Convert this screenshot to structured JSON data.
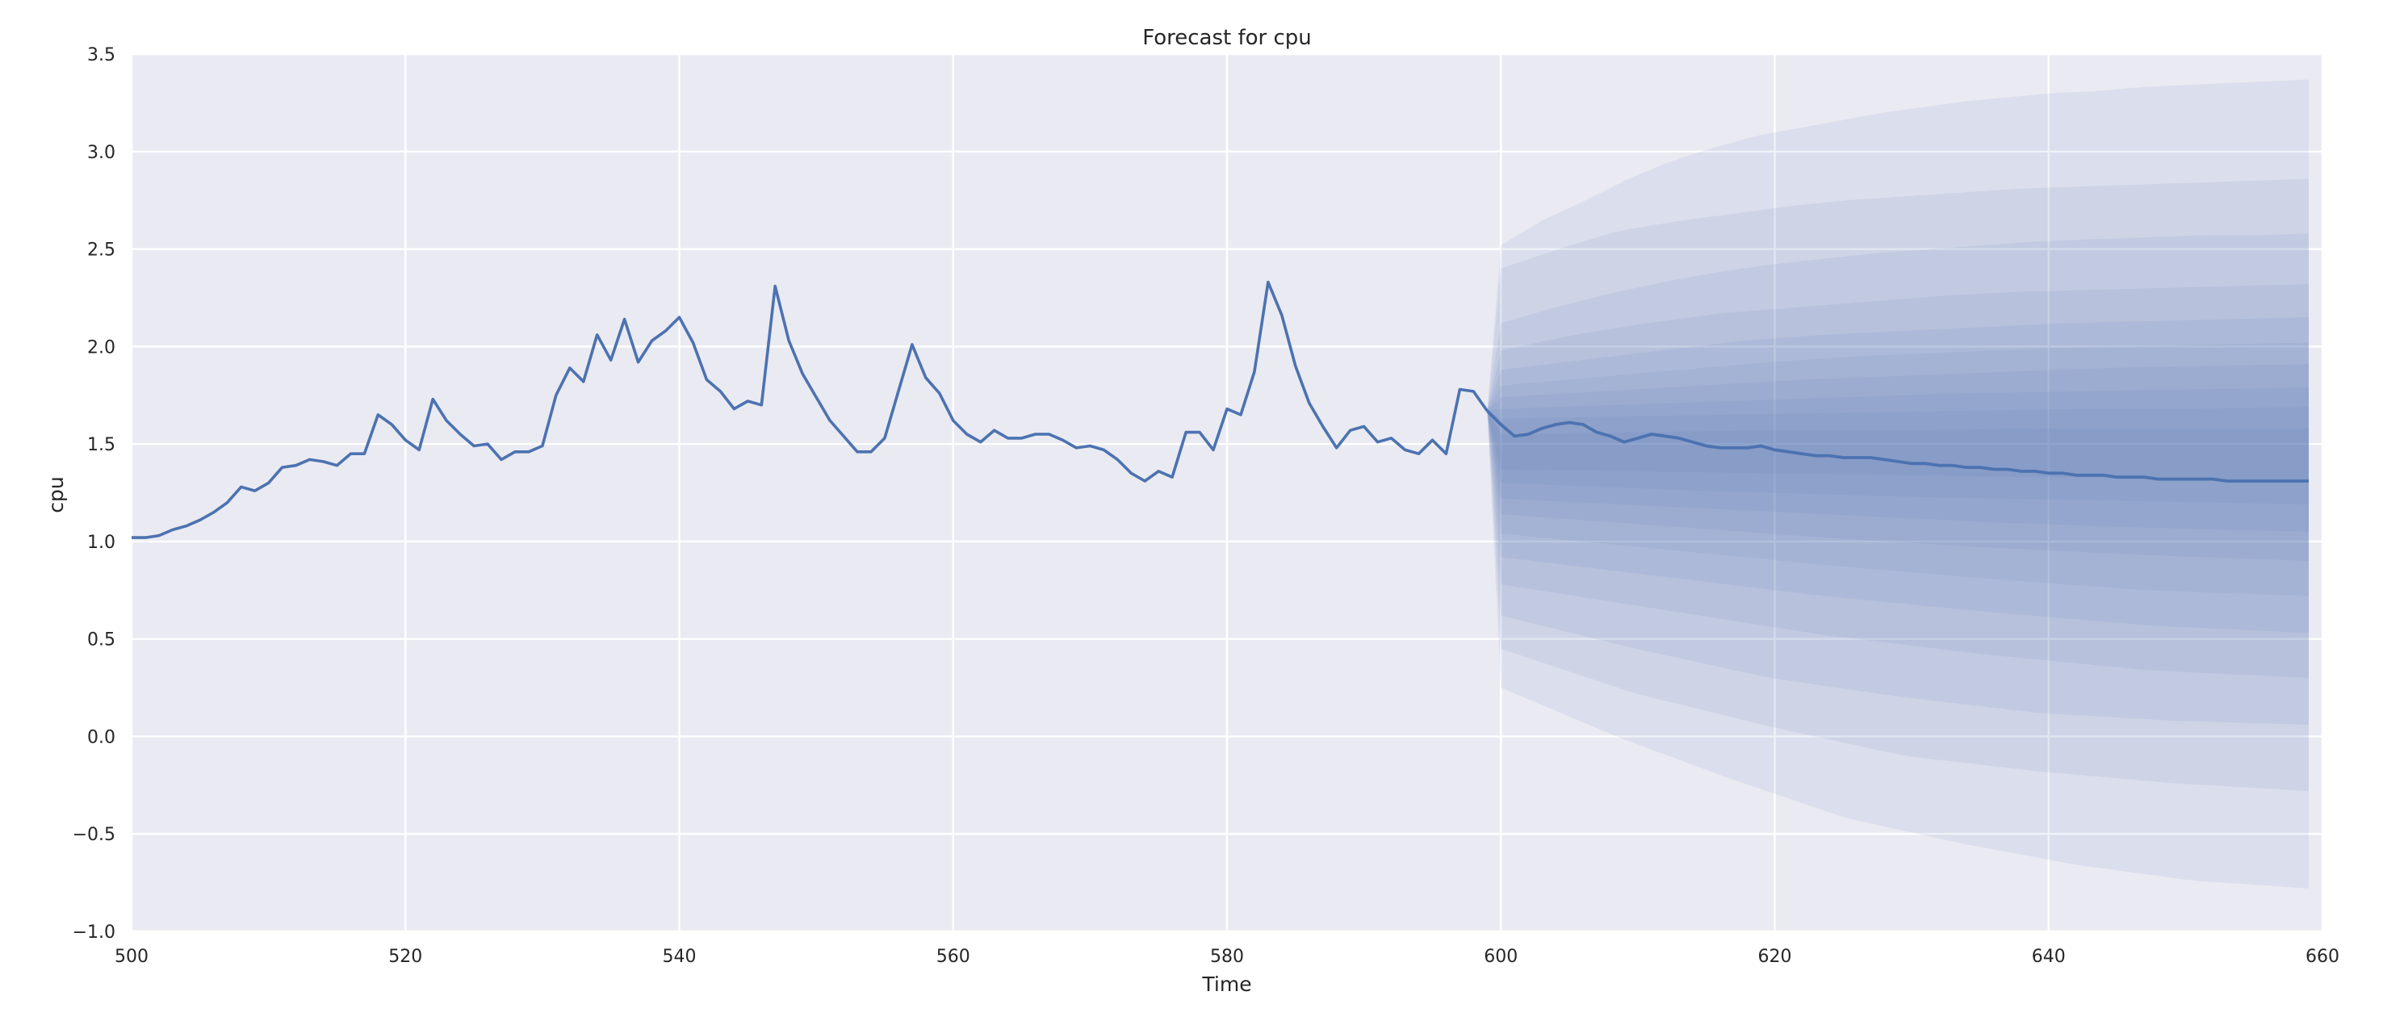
{
  "chart_data": {
    "type": "line",
    "title": "Forecast for cpu",
    "xlabel": "Time",
    "ylabel": "cpu",
    "xlim": [
      500,
      660
    ],
    "ylim": [
      -1.0,
      3.5
    ],
    "grid": true,
    "xticks": [
      "500",
      "520",
      "540",
      "560",
      "580",
      "600",
      "620",
      "640",
      "660"
    ],
    "yticks": [
      "−1.0",
      "−0.5",
      "0.0",
      "0.5",
      "1.0",
      "1.5",
      "2.0",
      "2.5",
      "3.0",
      "3.5"
    ],
    "colors": {
      "background": "#eaeaf2",
      "grid": "#ffffff",
      "line": "#4c72b0",
      "band": "#4c72b0"
    },
    "series": [
      {
        "x_start": 500,
        "values": [
          1.02,
          1.02,
          1.03,
          1.06,
          1.08,
          1.11,
          1.15,
          1.2,
          1.28,
          1.26,
          1.3,
          1.38,
          1.39,
          1.42,
          1.41,
          1.39,
          1.45,
          1.45,
          1.65,
          1.6,
          1.52,
          1.47,
          1.73,
          1.62,
          1.55,
          1.49,
          1.5,
          1.42,
          1.46,
          1.46,
          1.49,
          1.75,
          1.89,
          1.82,
          2.06,
          1.93,
          2.14,
          1.92,
          2.03,
          2.08,
          2.15,
          2.02,
          1.83,
          1.77,
          1.68,
          1.72,
          1.7,
          2.31,
          2.03,
          1.86,
          1.74,
          1.62,
          1.54,
          1.46,
          1.46,
          1.53,
          1.77,
          2.01,
          1.84,
          1.76,
          1.62,
          1.55,
          1.51,
          1.57,
          1.53,
          1.53,
          1.55,
          1.55,
          1.52,
          1.48,
          1.49,
          1.47,
          1.42,
          1.35,
          1.31,
          1.36,
          1.33,
          1.56,
          1.56,
          1.47,
          1.68,
          1.65,
          1.87,
          2.33,
          2.16,
          1.9,
          1.71,
          1.59,
          1.48,
          1.57,
          1.59,
          1.51,
          1.53,
          1.47,
          1.45,
          1.52,
          1.45,
          1.78,
          1.77,
          1.67
        ]
      },
      {
        "x": [
          599,
          600,
          601,
          602,
          603,
          604,
          605,
          606,
          607,
          608,
          609,
          610,
          611,
          612,
          613,
          614,
          615,
          616,
          617,
          618,
          619,
          620,
          621,
          622,
          623,
          624,
          625,
          626,
          627,
          628,
          629,
          630,
          631,
          632,
          633,
          634,
          635,
          636,
          637,
          638,
          639,
          640,
          641,
          642,
          643,
          644,
          645,
          646,
          647,
          648,
          649,
          650,
          651,
          652,
          653,
          654,
          655,
          656,
          657,
          658,
          659
        ],
        "values": [
          1.67,
          1.6,
          1.54,
          1.55,
          1.58,
          1.6,
          1.61,
          1.6,
          1.56,
          1.54,
          1.51,
          1.53,
          1.55,
          1.54,
          1.53,
          1.51,
          1.49,
          1.48,
          1.48,
          1.48,
          1.49,
          1.47,
          1.46,
          1.45,
          1.44,
          1.44,
          1.43,
          1.43,
          1.43,
          1.42,
          1.41,
          1.4,
          1.4,
          1.39,
          1.39,
          1.38,
          1.38,
          1.37,
          1.37,
          1.36,
          1.36,
          1.35,
          1.35,
          1.34,
          1.34,
          1.34,
          1.33,
          1.33,
          1.33,
          1.32,
          1.32,
          1.32,
          1.32,
          1.32,
          1.31,
          1.31,
          1.31,
          1.31,
          1.31,
          1.31,
          1.31
        ],
        "bands_upper": [
          [
            2.52,
            2.65,
            2.75,
            2.86,
            2.95,
            3.02,
            3.08,
            3.12,
            3.16,
            3.2,
            3.23,
            3.26,
            3.28,
            3.3,
            3.31,
            3.33,
            3.34,
            3.35,
            3.36,
            3.37
          ],
          [
            2.4,
            2.5,
            2.59,
            2.64,
            2.68,
            2.72,
            2.75,
            2.77,
            2.79,
            2.81,
            2.82,
            2.83,
            2.84,
            2.85,
            2.86
          ],
          [
            2.12,
            2.2,
            2.27,
            2.33,
            2.38,
            2.42,
            2.45,
            2.48,
            2.5,
            2.52,
            2.54,
            2.55,
            2.56,
            2.57,
            2.57,
            2.58
          ],
          [
            1.98,
            2.06,
            2.12,
            2.17,
            2.2,
            2.23,
            2.26,
            2.28,
            2.29,
            2.3,
            2.31,
            2.32
          ],
          [
            1.88,
            1.93,
            1.98,
            2.03,
            2.06,
            2.08,
            2.1,
            2.12,
            2.13,
            2.14,
            2.15
          ],
          [
            1.8,
            1.84,
            1.88,
            1.92,
            1.95,
            1.97,
            1.99,
            2.0,
            2.01,
            2.02
          ],
          [
            1.74,
            1.77,
            1.8,
            1.83,
            1.85,
            1.87,
            1.89,
            1.9,
            1.91
          ],
          [
            1.68,
            1.7,
            1.72,
            1.74,
            1.76,
            1.77,
            1.78,
            1.79
          ],
          [
            1.63,
            1.64,
            1.65,
            1.66,
            1.67,
            1.68,
            1.68,
            1.69
          ],
          [
            1.55,
            1.56,
            1.57,
            1.57,
            1.58,
            1.58,
            1.58
          ]
        ],
        "bands_lower": [
          [
            0.25,
            0.0,
            -0.22,
            -0.42,
            -0.55,
            -0.66,
            -0.74,
            -0.78
          ],
          [
            0.45,
            0.22,
            0.05,
            -0.1,
            -0.18,
            -0.24,
            -0.28
          ],
          [
            0.62,
            0.45,
            0.3,
            0.2,
            0.12,
            0.08,
            0.06
          ],
          [
            0.78,
            0.65,
            0.52,
            0.42,
            0.34,
            0.3
          ],
          [
            0.92,
            0.82,
            0.72,
            0.64,
            0.57,
            0.53
          ],
          [
            1.04,
            0.96,
            0.88,
            0.81,
            0.75,
            0.72
          ],
          [
            1.14,
            1.08,
            1.02,
            0.97,
            0.93,
            0.9
          ],
          [
            1.22,
            1.18,
            1.14,
            1.1,
            1.07,
            1.05
          ],
          [
            1.3,
            1.26,
            1.23,
            1.21,
            1.19
          ],
          [
            1.37,
            1.35,
            1.33,
            1.31
          ]
        ]
      }
    ]
  }
}
